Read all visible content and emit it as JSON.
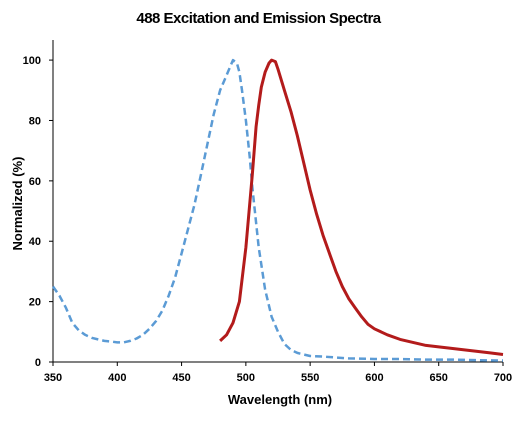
{
  "chart_data": {
    "type": "line",
    "title": "488 Excitation and Emission Spectra",
    "xlabel": "Wavelength (nm)",
    "ylabel": "Normalized (%)",
    "xlim": [
      350,
      700
    ],
    "ylim": [
      0,
      105
    ],
    "x_ticks": [
      350,
      400,
      450,
      500,
      550,
      600,
      650,
      700
    ],
    "y_ticks": [
      0,
      20,
      40,
      60,
      80,
      100
    ],
    "grid": false,
    "legend": "none",
    "series": [
      {
        "style": "dashed",
        "color": "#5b9bd5",
        "points": [
          [
            350,
            25
          ],
          [
            355,
            22
          ],
          [
            360,
            18
          ],
          [
            365,
            13
          ],
          [
            370,
            10.5
          ],
          [
            375,
            9
          ],
          [
            380,
            8
          ],
          [
            385,
            7.5
          ],
          [
            390,
            7
          ],
          [
            395,
            6.8
          ],
          [
            400,
            6.5
          ],
          [
            405,
            6.5
          ],
          [
            410,
            7
          ],
          [
            415,
            7.8
          ],
          [
            420,
            9
          ],
          [
            425,
            11
          ],
          [
            430,
            13.5
          ],
          [
            435,
            17
          ],
          [
            440,
            22
          ],
          [
            445,
            28
          ],
          [
            450,
            36
          ],
          [
            455,
            44
          ],
          [
            460,
            52
          ],
          [
            465,
            62
          ],
          [
            470,
            72
          ],
          [
            475,
            82
          ],
          [
            480,
            90
          ],
          [
            485,
            95
          ],
          [
            488,
            98
          ],
          [
            490,
            100
          ],
          [
            493,
            99
          ],
          [
            495,
            96
          ],
          [
            497,
            90
          ],
          [
            500,
            80
          ],
          [
            503,
            68
          ],
          [
            505,
            58
          ],
          [
            510,
            38
          ],
          [
            515,
            24
          ],
          [
            520,
            15
          ],
          [
            525,
            10
          ],
          [
            530,
            6
          ],
          [
            535,
            4
          ],
          [
            540,
            3
          ],
          [
            545,
            2.5
          ],
          [
            550,
            2
          ],
          [
            560,
            1.8
          ],
          [
            570,
            1.5
          ],
          [
            580,
            1.2
          ],
          [
            600,
            1
          ],
          [
            620,
            1
          ],
          [
            640,
            0.8
          ],
          [
            660,
            0.8
          ],
          [
            680,
            0.6
          ],
          [
            700,
            0.5
          ]
        ]
      },
      {
        "style": "solid",
        "color": "#b31b1b",
        "points": [
          [
            480,
            7
          ],
          [
            485,
            9
          ],
          [
            490,
            13
          ],
          [
            495,
            20
          ],
          [
            500,
            38
          ],
          [
            505,
            62
          ],
          [
            508,
            78
          ],
          [
            510,
            85
          ],
          [
            512,
            91
          ],
          [
            515,
            96
          ],
          [
            518,
            99
          ],
          [
            520,
            100
          ],
          [
            523,
            99.5
          ],
          [
            525,
            97
          ],
          [
            530,
            90
          ],
          [
            535,
            83
          ],
          [
            540,
            75
          ],
          [
            545,
            66
          ],
          [
            550,
            57
          ],
          [
            555,
            49
          ],
          [
            560,
            42
          ],
          [
            565,
            36
          ],
          [
            570,
            30
          ],
          [
            575,
            25
          ],
          [
            580,
            21
          ],
          [
            585,
            18
          ],
          [
            590,
            15
          ],
          [
            595,
            12.5
          ],
          [
            600,
            11
          ],
          [
            610,
            9
          ],
          [
            620,
            7.5
          ],
          [
            630,
            6.5
          ],
          [
            640,
            5.5
          ],
          [
            650,
            5
          ],
          [
            660,
            4.5
          ],
          [
            670,
            4
          ],
          [
            680,
            3.5
          ],
          [
            690,
            3
          ],
          [
            700,
            2.5
          ]
        ]
      }
    ]
  }
}
